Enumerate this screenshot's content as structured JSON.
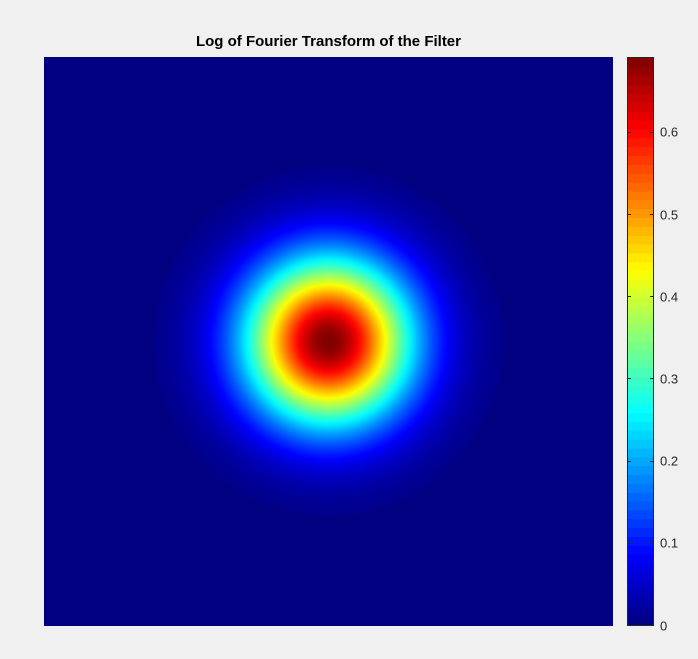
{
  "chart_data": {
    "type": "heatmap",
    "title": "Log of Fourier Transform of the Filter",
    "xlabel": "",
    "ylabel": "",
    "colormap": "jet",
    "grid": false,
    "description_values": {
      "peak_value": 0.69,
      "background_value": 0,
      "peak_center_fraction": [
        0.5,
        0.5
      ]
    },
    "color_limits": [
      0,
      0.69
    ],
    "colorbar": {
      "location": "right",
      "ticks": [
        0,
        0.1,
        0.2,
        0.3,
        0.4,
        0.5,
        0.6
      ],
      "tick_labels": [
        "0",
        "0.1",
        "0.2",
        "0.3",
        "0.4",
        "0.5",
        "0.6"
      ]
    },
    "colors": {
      "background": "#f0f0f0",
      "jet_low": "#00008f",
      "jet_high": "#800000"
    }
  }
}
